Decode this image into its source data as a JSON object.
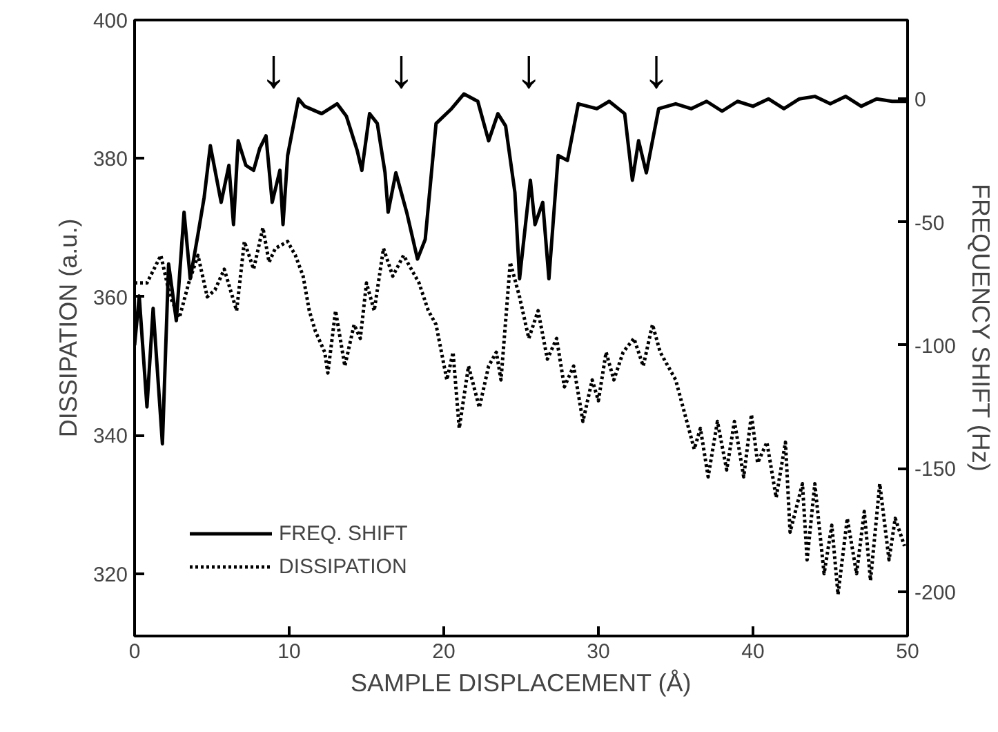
{
  "chart_data": {
    "type": "line",
    "xlabel": "SAMPLE DISPLACEMENT (Å)",
    "ylabel": "DISSIPATION (a.u.)",
    "y2label": "FREQUENCY SHIFT (Hz)",
    "xlim": [
      0,
      50
    ],
    "xticks": [
      0,
      10,
      20,
      30,
      40,
      50
    ],
    "ylim": [
      311,
      400
    ],
    "yticks": [
      320,
      340,
      360,
      380,
      400
    ],
    "y2lim": [
      -218,
      32
    ],
    "y2ticks": [
      -200,
      -150,
      -100,
      -50,
      0
    ],
    "legend": "bottom left",
    "grid": false,
    "annotations": [
      "↓",
      "↓",
      "↓",
      "↓"
    ],
    "series": [
      {
        "name": "FREQ. SHIFT",
        "color": "#000000",
        "axis": "y2",
        "line_style": "solid",
        "x": [
          0,
          0.3,
          0.8,
          1.2,
          1.8,
          2.2,
          2.7,
          3.2,
          3.6,
          4.1,
          4.5,
          4.9,
          5.6,
          6.1,
          6.4,
          6.7,
          7.2,
          7.7,
          8.1,
          8.5,
          8.9,
          9.4,
          9.6,
          9.9,
          10.6,
          11,
          12.1,
          13.1,
          13.7,
          14.4,
          14.7,
          15.2,
          15.7,
          16.2,
          16.4,
          16.9,
          17.6,
          18.3,
          18.8,
          19.5,
          20.5,
          21.3,
          22.2,
          22.9,
          23.5,
          24,
          24.6,
          24.9,
          25.6,
          25.9,
          26.4,
          26.8,
          27.4,
          28,
          28.7,
          29.9,
          30.7,
          31.7,
          32.2,
          32.6,
          33.1,
          33.9,
          35,
          36,
          37,
          38,
          39,
          40,
          41,
          42,
          43,
          44,
          45,
          46,
          47,
          48,
          49,
          50
        ],
        "values": [
          -100,
          -80,
          -125,
          -85,
          -140,
          -67,
          -90,
          -46,
          -73,
          -55,
          -40,
          -19,
          -42,
          -27,
          -51,
          -17,
          -27,
          -29,
          -20,
          -15,
          -42,
          -29,
          -51,
          -23,
          0,
          -3,
          -6,
          -2,
          -7,
          -21,
          -29,
          -6,
          -10,
          -30,
          -46,
          -30,
          -46,
          -65,
          -57,
          -10,
          -4,
          2,
          -1,
          -17,
          -6,
          -11,
          -38,
          -73,
          -33,
          -51,
          -42,
          -73,
          -23,
          -25,
          -2,
          -4,
          -1,
          -6,
          -33,
          -17,
          -30,
          -4,
          -2,
          -4,
          -1,
          -5,
          -1,
          -3,
          0,
          -4,
          0,
          1,
          -2,
          1,
          -3,
          0,
          -1,
          -1
        ]
      },
      {
        "name": "DISSIPATION",
        "color": "#000000",
        "axis": "y",
        "line_style": "dotted",
        "x": [
          0,
          0.8,
          1.7,
          2.3,
          2.9,
          3.5,
          4.1,
          4.7,
          5.2,
          5.8,
          6.6,
          7.1,
          7.7,
          8.3,
          8.7,
          9.1,
          9.9,
          10.4,
          10.9,
          11.3,
          11.7,
          12.3,
          12.5,
          13,
          13.6,
          14.2,
          14.6,
          15,
          15.5,
          16.1,
          16.7,
          17.4,
          17.9,
          18.4,
          19,
          19.5,
          20.2,
          20.6,
          21,
          21.6,
          22.3,
          22.9,
          23.4,
          23.7,
          24.3,
          24.9,
          25.5,
          26.1,
          26.7,
          27.3,
          27.8,
          28.4,
          29,
          29.6,
          30,
          30.5,
          31,
          31.6,
          32.3,
          32.9,
          33.5,
          34,
          34.5,
          35,
          35.6,
          36.2,
          36.6,
          37.1,
          37.7,
          38.3,
          38.8,
          39.4,
          39.9,
          40.3,
          40.9,
          41.5,
          42.1,
          42.4,
          43.2,
          43.5,
          44,
          44.6,
          45.1,
          45.5,
          46.1,
          46.7,
          47.2,
          47.6,
          48.2,
          48.8,
          49.2,
          49.8
        ],
        "values": [
          362,
          362,
          366,
          360,
          357,
          362,
          366,
          360,
          361,
          364,
          358,
          368,
          364,
          370,
          365,
          367,
          368,
          366,
          363,
          358,
          355,
          352,
          349,
          358,
          350,
          356,
          354,
          362,
          358,
          367,
          363,
          366,
          364,
          362,
          358,
          356,
          348,
          352,
          341,
          350,
          344,
          350,
          352,
          348,
          365,
          360,
          354,
          358,
          351,
          354,
          347,
          350,
          342,
          348,
          345,
          352,
          348,
          352,
          354,
          350,
          356,
          352,
          350,
          348,
          343,
          338,
          341,
          334,
          342,
          335,
          342,
          334,
          343,
          336,
          339,
          331,
          339,
          326,
          333,
          322,
          333,
          320,
          327,
          317,
          328,
          320,
          329,
          319,
          333,
          322,
          328,
          324
        ]
      }
    ]
  }
}
